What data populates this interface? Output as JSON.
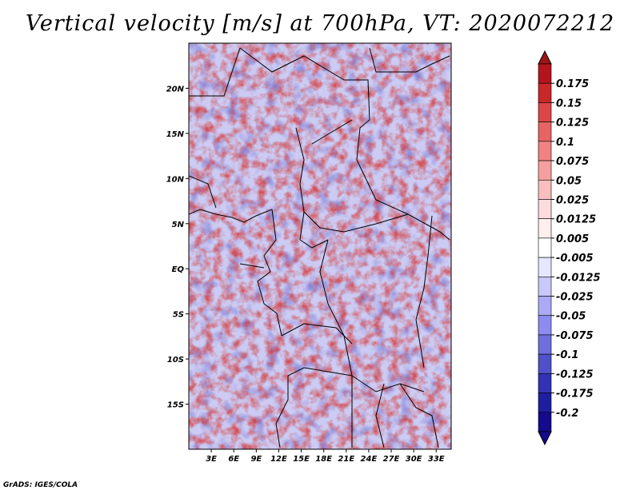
{
  "title": "Vertical velocity [m/s] at 700hPa, VT: 2020072212",
  "credit": "GrADS: IGES/COLA",
  "map": {
    "lon_range": [
      0,
      35
    ],
    "lat_range": [
      -20,
      25
    ],
    "lat_ticks": [
      {
        "value": 20,
        "label": "20N"
      },
      {
        "value": 15,
        "label": "15N"
      },
      {
        "value": 10,
        "label": "10N"
      },
      {
        "value": 5,
        "label": "5N"
      },
      {
        "value": 0,
        "label": "EQ"
      },
      {
        "value": -5,
        "label": "5S"
      },
      {
        "value": -10,
        "label": "10S"
      },
      {
        "value": -15,
        "label": "15S"
      }
    ],
    "lon_ticks": [
      {
        "value": 3,
        "label": "3E"
      },
      {
        "value": 6,
        "label": "6E"
      },
      {
        "value": 9,
        "label": "9E"
      },
      {
        "value": 12,
        "label": "12E"
      },
      {
        "value": 15,
        "label": "15E"
      },
      {
        "value": 18,
        "label": "18E"
      },
      {
        "value": 21,
        "label": "21E"
      },
      {
        "value": 24,
        "label": "24E"
      },
      {
        "value": 27,
        "label": "27E"
      },
      {
        "value": 30,
        "label": "30E"
      },
      {
        "value": 33,
        "label": "33E"
      }
    ]
  },
  "colorbar": {
    "levels": [
      {
        "label": "0.175",
        "color": "#b4141e"
      },
      {
        "label": "0.15",
        "color": "#c82828"
      },
      {
        "label": "0.125",
        "color": "#dc4646"
      },
      {
        "label": "0.1",
        "color": "#e66464"
      },
      {
        "label": "0.075",
        "color": "#f08282"
      },
      {
        "label": "0.05",
        "color": "#f5a0a0"
      },
      {
        "label": "0.025",
        "color": "#fabebe"
      },
      {
        "label": "0.0125",
        "color": "#fcdcdc"
      },
      {
        "label": "0.005",
        "color": "#ffeeee"
      },
      {
        "label": "-0.005",
        "color": "#ffffff"
      },
      {
        "label": "-0.0125",
        "color": "#e6e6ff"
      },
      {
        "label": "-0.025",
        "color": "#c8c8fa"
      },
      {
        "label": "-0.05",
        "color": "#aaaaf5"
      },
      {
        "label": "-0.075",
        "color": "#8c8cf0"
      },
      {
        "label": "-0.1",
        "color": "#6e6edc"
      },
      {
        "label": "-0.125",
        "color": "#5050c8"
      },
      {
        "label": "-0.175",
        "color": "#3232b4"
      },
      {
        "label": "-0.2",
        "color": "#1e1ea0"
      }
    ],
    "top_color": "#a01414",
    "bottom_color": "#140a8c"
  }
}
